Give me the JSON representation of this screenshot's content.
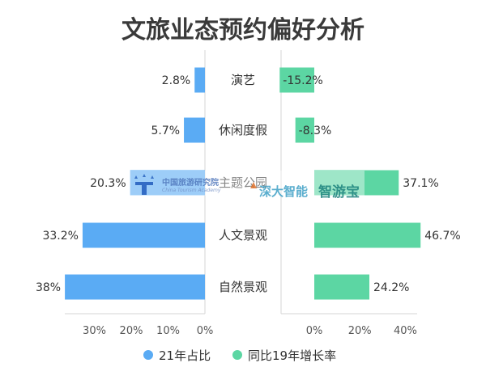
{
  "chart_data": {
    "type": "bar",
    "title": "文旅业态预约偏好分析",
    "categories": [
      "演艺",
      "休闲度假",
      "主题公园",
      "人文景观",
      "自然景观"
    ],
    "series": [
      {
        "name": "21年占比",
        "values": [
          2.8,
          5.7,
          20.3,
          33.2,
          38
        ],
        "labels": [
          "2.8%",
          "5.7%",
          "20.3%",
          "33.2%",
          "38%"
        ],
        "color": "#5aabf4",
        "xlim": [
          0,
          40
        ],
        "ticks": [
          "30%",
          "20%",
          "10%",
          "0%"
        ],
        "direction": "leftward"
      },
      {
        "name": "同比19年增长率",
        "values": [
          -15.2,
          -8.3,
          37.1,
          46.7,
          24.2
        ],
        "labels": [
          "-15.2%",
          "-8.3%",
          "37.1%",
          "46.7%",
          "24.2%"
        ],
        "color": "#5cd6a3",
        "xlim": [
          -15.2,
          50
        ],
        "ticks": [
          "0%",
          "20%",
          "40%"
        ],
        "direction": "rightward"
      }
    ],
    "legend": "bottom-center",
    "grid": false
  },
  "watermarks": {
    "institute_cn": "中国旅游研究院",
    "institute_en": "China Tourism Academy",
    "brand_1": "深大智能",
    "brand_2": "智游宝"
  }
}
